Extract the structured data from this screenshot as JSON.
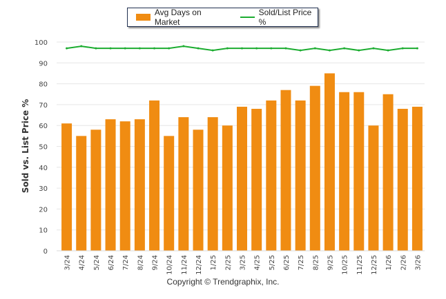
{
  "chart_data": {
    "type": "bar",
    "title": "",
    "xlabel": "",
    "ylabel": "Sold vs. List Price %",
    "ylim": [
      0,
      100
    ],
    "yticks": [
      0,
      10,
      20,
      30,
      40,
      50,
      60,
      70,
      80,
      90,
      100
    ],
    "grid": true,
    "legend_position": "top-center",
    "categories": [
      "3/24",
      "4/24",
      "5/24",
      "6/24",
      "7/24",
      "8/24",
      "9/24",
      "10/24",
      "11/24",
      "12/24",
      "1/25",
      "2/25",
      "3/25",
      "4/25",
      "5/25",
      "6/25",
      "7/25",
      "8/25",
      "9/25",
      "10/25",
      "11/25",
      "12/25",
      "1/26",
      "2/26",
      "3/26"
    ],
    "series": [
      {
        "name": "Avg Days on Market",
        "type": "bar",
        "color": "#f08c12",
        "values": [
          61,
          55,
          58,
          63,
          62,
          63,
          72,
          55,
          64,
          58,
          64,
          60,
          69,
          68,
          72,
          77,
          72,
          79,
          85,
          76,
          76,
          60,
          75,
          68,
          69
        ]
      },
      {
        "name": "Sold/List Price %",
        "type": "line",
        "color": "#1aac2f",
        "values": [
          97,
          98,
          97,
          97,
          97,
          97,
          97,
          97,
          98,
          97,
          96,
          97,
          97,
          97,
          97,
          97,
          96,
          97,
          96,
          97,
          96,
          97,
          96,
          97,
          97
        ]
      }
    ]
  },
  "copyright": "Copyright © Trendgraphix, Inc."
}
